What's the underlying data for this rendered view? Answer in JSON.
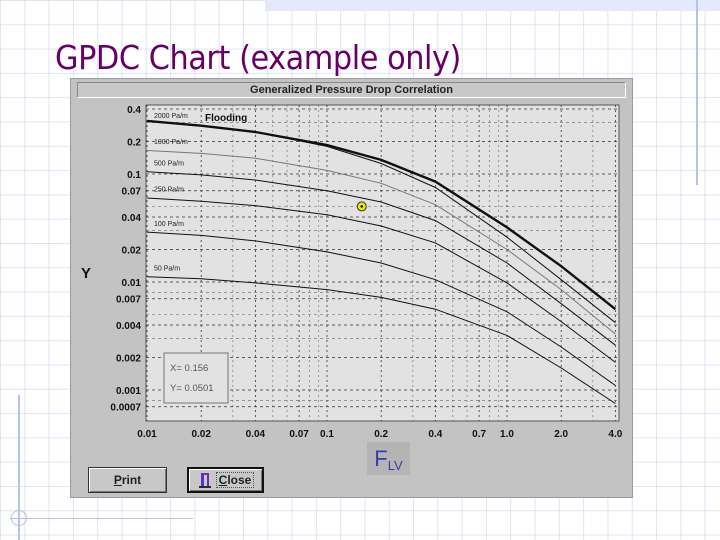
{
  "slide": {
    "title": "GPDC Chart (example only)"
  },
  "window": {
    "title": "Generalized Pressure Drop Correlation",
    "buttons": {
      "print": {
        "label": "Print",
        "mnemonic": "P",
        "rest": "rint"
      },
      "close": {
        "label": "Close",
        "mnemonic": "C",
        "rest": "lose",
        "icon": "door-exit-icon"
      }
    },
    "readout": {
      "x_text": "X= 0.156",
      "y_text": "Y= 0.0501"
    },
    "axis_y_label": "Y",
    "axis_x_label_main": "F",
    "axis_x_label_sub": "LV"
  },
  "colors": {
    "title": "#660066",
    "window_bg": "#c3c3c3",
    "plot_bg": "#e2e2e2",
    "marker": "#e8e800",
    "x_axis_label": "#3b3bb0",
    "curve_dark": "#111111",
    "curve_gray": "#777777"
  },
  "chart_data": {
    "type": "line",
    "title": "Generalized Pressure Drop Correlation",
    "xlabel": "F_LV",
    "ylabel": "Y",
    "xscale": "log",
    "yscale": "log",
    "xlim": [
      0.01,
      4.0
    ],
    "ylim": [
      0.0006,
      0.4
    ],
    "grid": true,
    "x_ticks": [
      "0.01",
      "0.02",
      "0.04",
      "0.07",
      "0.1",
      "0.2",
      "0.4",
      "0.7",
      "1.0",
      "2.0",
      "4.0"
    ],
    "y_ticks": [
      "0.4",
      "0.2",
      "0.1",
      "0.07",
      "0.04",
      "0.02",
      "0.01",
      "0.007",
      "0.004",
      "0.002",
      "0.001",
      "0.0007"
    ],
    "x": [
      0.01,
      0.02,
      0.04,
      0.1,
      0.2,
      0.4,
      1.0,
      2.0,
      4.0
    ],
    "series": [
      {
        "name": "Flooding",
        "label": "Flooding",
        "width": 2.4,
        "color": "#111111",
        "values": [
          0.31,
          0.28,
          0.245,
          0.185,
          0.135,
          0.085,
          0.032,
          0.014,
          0.0056
        ]
      },
      {
        "name": "2000 Pa/m",
        "label": "2000 Pa/m",
        "width": 1,
        "color": "#111111",
        "values": [
          0.31,
          0.28,
          0.245,
          0.18,
          0.125,
          0.075,
          0.026,
          0.0105,
          0.0042
        ]
      },
      {
        "name": "1000 Pa/m",
        "label": "1000 Pa/m",
        "width": 1,
        "color": "#777777",
        "values": [
          0.165,
          0.155,
          0.14,
          0.108,
          0.082,
          0.052,
          0.02,
          0.0085,
          0.0033
        ]
      },
      {
        "name": "500 Pa/m",
        "label": "500 Pa/m",
        "width": 1,
        "color": "#111111",
        "values": [
          0.105,
          0.098,
          0.088,
          0.07,
          0.055,
          0.037,
          0.015,
          0.0063,
          0.0026
        ]
      },
      {
        "name": "250 Pa/m",
        "label": "250 Pa/m",
        "width": 1,
        "color": "#111111",
        "values": [
          0.06,
          0.056,
          0.051,
          0.042,
          0.033,
          0.023,
          0.0098,
          0.0043,
          0.0018
        ]
      },
      {
        "name": "100 Pa/m",
        "label": "100 Pa/m",
        "width": 1,
        "color": "#111111",
        "values": [
          0.029,
          0.027,
          0.024,
          0.019,
          0.015,
          0.0105,
          0.0053,
          0.0025,
          0.0011
        ]
      },
      {
        "name": "50 Pa/m",
        "label": "50 Pa/m",
        "width": 1,
        "color": "#111111",
        "values": [
          0.0112,
          0.0107,
          0.0098,
          0.0085,
          0.0072,
          0.0056,
          0.0032,
          0.0016,
          0.00075
        ]
      }
    ],
    "marker_point": {
      "x": 0.156,
      "y": 0.0501,
      "style": "yellow circle with dot"
    },
    "annotations": [
      "Flooding",
      "X= 0.156",
      "Y= 0.0501"
    ],
    "legend": "inline labels at left of curves"
  }
}
